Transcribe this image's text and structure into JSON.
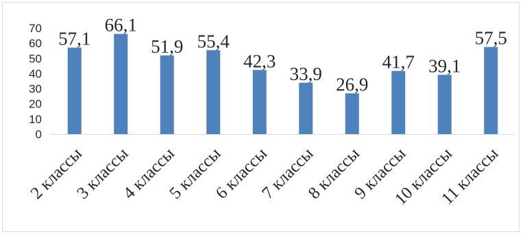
{
  "chart_data": {
    "type": "bar",
    "title": "",
    "xlabel": "",
    "ylabel": "",
    "categories": [
      "2 классы",
      "3 классы",
      "4 классы",
      "5 классы",
      "6 классы",
      "7 классы",
      "8 классы",
      "9 классы",
      "10 классы",
      "11 классы"
    ],
    "values": [
      57.1,
      66.1,
      51.9,
      55.4,
      42.3,
      33.9,
      26.9,
      41.7,
      39.1,
      57.5
    ],
    "value_labels": [
      "57,1",
      "66,1",
      "51,9",
      "55,4",
      "42,3",
      "33,9",
      "26,9",
      "41,7",
      "39,1",
      "57,5"
    ],
    "ylim": [
      0,
      70
    ],
    "yticks": [
      0,
      10,
      20,
      30,
      40,
      50,
      60,
      70
    ],
    "grid": false,
    "legend": "none",
    "bar_color": "#4f81bd",
    "axis_color": "#d9d9d9",
    "text_color": "#262626"
  }
}
